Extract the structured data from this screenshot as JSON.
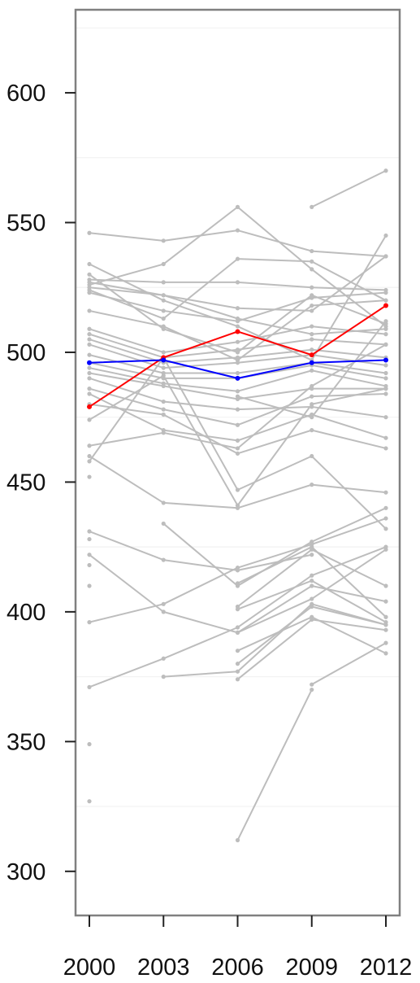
{
  "chart_data": {
    "type": "line",
    "title": "",
    "xlabel": "",
    "ylabel": "",
    "x": [
      2000,
      2003,
      2006,
      2009,
      2012
    ],
    "x_tick_labels": [
      "2000",
      "2003",
      "2006",
      "2009",
      "2012"
    ],
    "y_ticks": [
      300,
      350,
      400,
      450,
      500,
      550,
      600
    ],
    "y_tick_labels": [
      "300",
      "350",
      "400",
      "450",
      "500",
      "550",
      "600"
    ],
    "ylim": [
      283,
      632
    ],
    "grid": true,
    "legend": "none",
    "colors": {
      "background_series": "#bdbdbd",
      "highlight_red": "#ff0000",
      "highlight_blue": "#0000ff",
      "axis": "#707070",
      "panel_border": "#808080",
      "gridline": "#f2f2f2"
    },
    "series": [
      {
        "values": [
          null,
          null,
          312,
          370,
          null
        ]
      },
      {
        "values": [
          null,
          null,
          null,
          372,
          388
        ]
      },
      {
        "values": [
          null,
          null,
          374,
          397,
          393
        ]
      },
      {
        "values": [
          null,
          null,
          385,
          398,
          384
        ]
      },
      {
        "values": [
          null,
          null,
          380,
          402,
          395
        ]
      },
      {
        "values": [
          null,
          null,
          392,
          410,
          404
        ]
      },
      {
        "values": [
          null,
          null,
          401,
          412,
          396
        ]
      },
      {
        "values": [
          null,
          null,
          402,
          424,
          410
        ]
      },
      {
        "values": [
          null,
          null,
          411,
          425,
          398
        ]
      },
      {
        "values": [
          null,
          375,
          377,
          403,
          395
        ]
      },
      {
        "values": [
          371,
          382,
          394,
          414,
          425
        ]
      },
      {
        "values": [
          396,
          403,
          417,
          426,
          436
        ]
      },
      {
        "values": [
          422,
          400,
          392,
          405,
          424
        ]
      },
      {
        "values": [
          431,
          420,
          416,
          422,
          null
        ]
      },
      {
        "values": [
          null,
          434,
          410,
          427,
          440
        ]
      },
      {
        "values": [
          460,
          442,
          440,
          449,
          446
        ]
      },
      {
        "values": [
          458,
          498,
          447,
          460,
          432
        ]
      },
      {
        "values": [
          480,
          476,
          461,
          470,
          463
        ]
      },
      {
        "values": [
          484,
          470,
          466,
          476,
          467
        ]
      },
      {
        "values": [
          486,
          478,
          472,
          483,
          484
        ]
      },
      {
        "values": [
          490,
          481,
          478,
          479,
          475
        ]
      },
      {
        "values": [
          492,
          487,
          482,
          486,
          486
        ]
      },
      {
        "values": [
          494,
          488,
          485,
          493,
          487
        ]
      },
      {
        "values": [
          496,
          490,
          490,
          495,
          490
        ]
      },
      {
        "values": [
          499,
          492,
          492,
          496,
          492
        ]
      },
      {
        "values": [
          503,
          494,
          496,
          499,
          495
        ]
      },
      {
        "values": [
          505,
          496,
          498,
          501,
          498
        ]
      },
      {
        "values": [
          507,
          498,
          501,
          505,
          503
        ]
      },
      {
        "values": [
          509,
          500,
          504,
          510,
          507
        ]
      },
      {
        "values": [
          516,
          510,
          497,
          518,
          520
        ]
      },
      {
        "values": [
          523,
          516,
          512,
          521,
          523
        ]
      },
      {
        "values": [
          525,
          522,
          513,
          507,
          509
        ]
      },
      {
        "values": [
          527,
          522,
          517,
          516,
          537
        ]
      },
      {
        "values": [
          528,
          527,
          527,
          525,
          524
        ]
      },
      {
        "values": [
          530,
          509,
          500,
          522,
          511
        ]
      },
      {
        "values": [
          534,
          520,
          510,
          497,
          545
        ]
      },
      {
        "values": [
          546,
          543,
          547,
          539,
          537
        ]
      },
      {
        "values": [
          526,
          534,
          556,
          532,
          510
        ]
      },
      {
        "values": [
          524,
          513,
          536,
          535,
          520
        ]
      },
      {
        "values": [
          474,
          491,
          441,
          480,
          486
        ]
      },
      {
        "values": [
          464,
          469,
          463,
          487,
          503
        ]
      },
      {
        "values": [
          452,
          null,
          483,
          475,
          512
        ]
      },
      {
        "values": [
          null,
          null,
          null,
          556,
          570
        ]
      },
      {
        "values": [
          349,
          null,
          null,
          null,
          null
        ]
      },
      {
        "values": [
          327,
          null,
          null,
          null,
          null
        ]
      },
      {
        "values": [
          410,
          null,
          null,
          null,
          null
        ]
      },
      {
        "values": [
          418,
          null,
          null,
          null,
          null
        ]
      },
      {
        "values": [
          428,
          null,
          null,
          null,
          null
        ]
      },
      {
        "values": [
          479,
          498,
          508,
          499,
          518
        ],
        "highlight": "red"
      },
      {
        "values": [
          496,
          497,
          490,
          496,
          497
        ],
        "highlight": "blue"
      }
    ]
  }
}
